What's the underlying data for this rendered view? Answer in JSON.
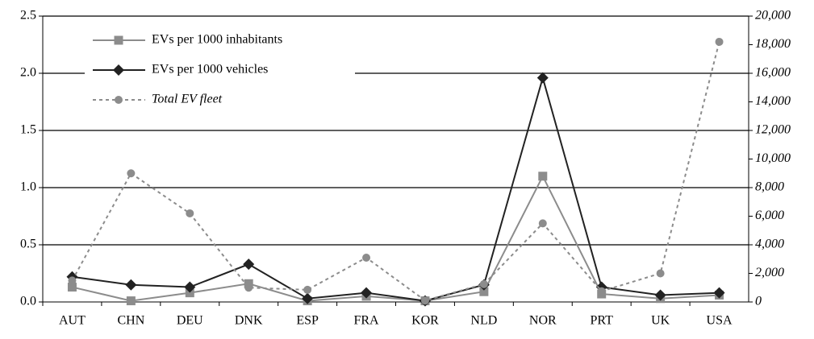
{
  "chart_data": {
    "type": "line",
    "categories": [
      "AUT",
      "CHN",
      "DEU",
      "DNK",
      "ESP",
      "FRA",
      "KOR",
      "NLD",
      "NOR",
      "PRT",
      "UK",
      "USA"
    ],
    "series": [
      {
        "name": "EVs per 1000 inhabitants",
        "color": "#8c8c8c",
        "marker": "square",
        "dash": "solid",
        "values": [
          0.13,
          0.01,
          0.08,
          0.16,
          0.01,
          0.05,
          0.01,
          0.09,
          1.1,
          0.07,
          0.03,
          0.06
        ]
      },
      {
        "name": "EVs per 1000 vehicles",
        "color": "#222222",
        "marker": "diamond",
        "dash": "solid",
        "values": [
          0.22,
          0.15,
          0.13,
          0.33,
          0.03,
          0.08,
          0.01,
          0.15,
          1.96,
          0.13,
          0.06,
          0.08
        ]
      },
      {
        "name": "Total EV fleet",
        "color": "#8c8c8c",
        "marker": "circle",
        "dash": "dotted",
        "axis": "y2",
        "values": [
          1500,
          9000,
          6200,
          1000,
          850,
          3100,
          100,
          1250,
          5500,
          750,
          2000,
          18200
        ]
      }
    ],
    "ylim": [
      0,
      2.5
    ],
    "yticks": [
      {
        "value": 0,
        "label": "0.0"
      },
      {
        "value": 0.5,
        "label": "0.5"
      },
      {
        "value": 1,
        "label": "1.0"
      },
      {
        "value": 1.5,
        "label": "1.5"
      },
      {
        "value": 2,
        "label": "2.0"
      },
      {
        "value": 2.5,
        "label": "2.5"
      }
    ],
    "y2lim": [
      0,
      20000
    ],
    "y2ticks": [
      0,
      {
        "value": 2000,
        "label": "2,000"
      },
      {
        "value": 4000,
        "label": "4,000"
      },
      {
        "value": 6000,
        "label": "6,000"
      },
      {
        "value": 8000,
        "label": "8,000"
      },
      {
        "value": 10000,
        "label": "10,000"
      },
      {
        "value": 12000,
        "label": "12,000"
      },
      {
        "value": 14000,
        "label": "14,000"
      },
      {
        "value": 16000,
        "label": "16,000"
      },
      {
        "value": 18000,
        "label": "18,000"
      },
      {
        "value": 20000,
        "label": "20,000"
      }
    ],
    "grid": true,
    "legend": "top-left"
  }
}
